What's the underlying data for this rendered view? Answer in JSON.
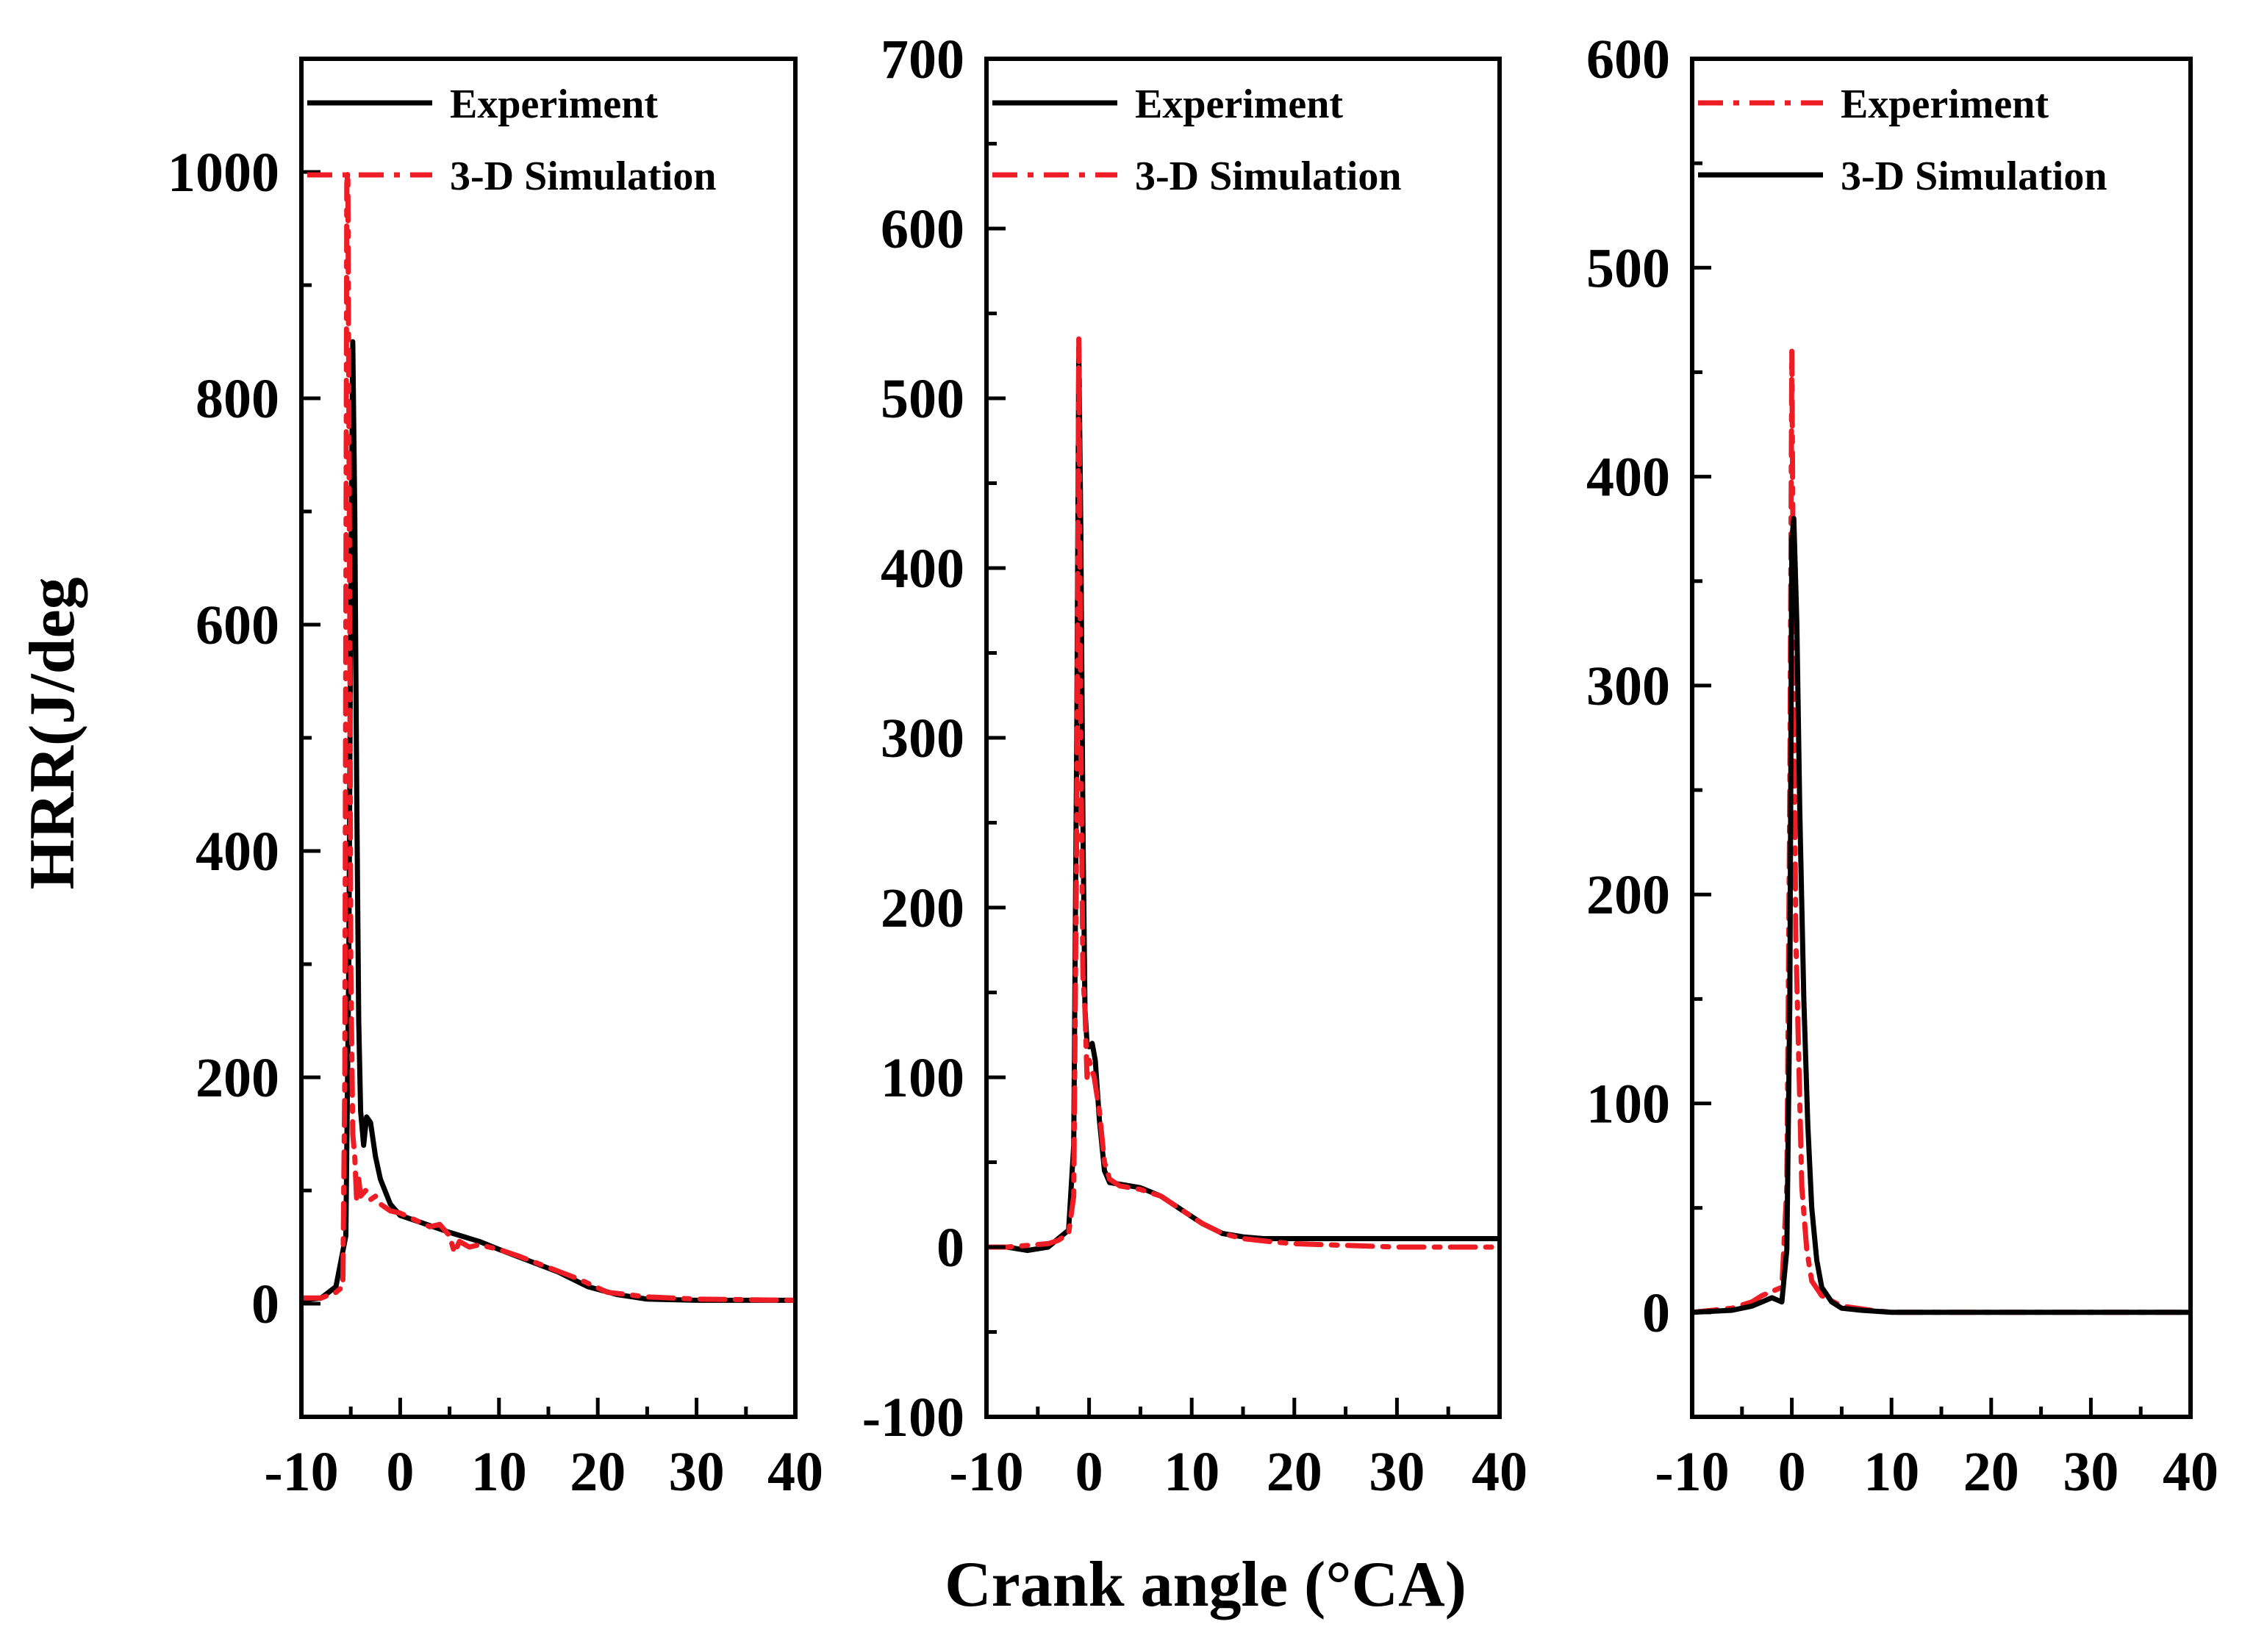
{
  "figure": {
    "ylabel": "HRR(J/deg",
    "xlabel": "Crank angle (°CA)"
  },
  "colors": {
    "experiment_black": "#000000",
    "simulation_red": "#ee1c25"
  },
  "chart_data": [
    {
      "type": "line",
      "xlim": [
        -10,
        40
      ],
      "ylim": [
        -100,
        1100
      ],
      "xticks": [
        -10,
        0,
        10,
        20,
        30,
        40
      ],
      "xtick_labels": [
        "-10",
        "0",
        "10",
        "20",
        "30",
        "40"
      ],
      "yticks": [
        0,
        200,
        400,
        600,
        800,
        1000
      ],
      "ytick_labels": [
        "0",
        "200",
        "400",
        "600",
        "800",
        "1000"
      ],
      "legend": {
        "position": "top-right",
        "labels": [
          "Experiment",
          "3-D Simulation"
        ]
      },
      "series": [
        {
          "name": "Experiment",
          "color": "#000000",
          "style": "solid",
          "x": [
            -10,
            -8,
            -6.5,
            -5.5,
            -5.2,
            -5,
            -4.8,
            -4.6,
            -4.4,
            -4.2,
            -4,
            -3.7,
            -3.4,
            -3,
            -2.5,
            -2,
            -1,
            0,
            2,
            5,
            8,
            10,
            13,
            16,
            19,
            22,
            25,
            30,
            40
          ],
          "y": [
            3,
            5,
            15,
            60,
            300,
            620,
            850,
            700,
            450,
            250,
            170,
            140,
            165,
            160,
            130,
            110,
            88,
            78,
            72,
            63,
            55,
            48,
            38,
            28,
            15,
            8,
            4,
            3,
            3
          ]
        },
        {
          "name": "3-D Simulation",
          "color": "#ee1c25",
          "style": "dashdot",
          "x": [
            -10,
            -8,
            -6.5,
            -5.8,
            -5.6,
            -5.4,
            -5.3,
            -5.1,
            -5,
            -4.8,
            -4.6,
            -4.4,
            -4.2,
            -4,
            -3.5,
            -3,
            -2.5,
            -2,
            -1,
            0,
            2,
            3,
            4,
            5,
            5.5,
            6,
            7,
            8,
            10,
            12,
            15,
            18,
            21,
            25,
            30,
            40
          ],
          "y": [
            5,
            5,
            10,
            15,
            200,
            990,
            1000,
            600,
            300,
            150,
            130,
            90,
            110,
            95,
            100,
            92,
            95,
            88,
            82,
            80,
            72,
            68,
            70,
            60,
            45,
            55,
            50,
            52,
            48,
            42,
            32,
            22,
            10,
            6,
            4,
            3
          ]
        }
      ]
    },
    {
      "type": "line",
      "xlim": [
        -10,
        40
      ],
      "ylim": [
        -100,
        700
      ],
      "xticks": [
        -10,
        0,
        10,
        20,
        30,
        40
      ],
      "xtick_labels": [
        "-10",
        "0",
        "10",
        "20",
        "30",
        "40"
      ],
      "yticks": [
        -100,
        0,
        100,
        200,
        300,
        400,
        500,
        600,
        700
      ],
      "ytick_labels": [
        "-100",
        "0",
        "100",
        "200",
        "300",
        "400",
        "500",
        "600",
        "700"
      ],
      "legend": {
        "position": "top-right",
        "labels": [
          "Experiment",
          "3-D Simulation"
        ]
      },
      "series": [
        {
          "name": "Experiment",
          "color": "#000000",
          "style": "solid",
          "x": [
            -10,
            -8,
            -6,
            -4,
            -3,
            -2,
            -1.5,
            -1.2,
            -1,
            -0.8,
            -0.6,
            -0.4,
            -0.2,
            0,
            0.3,
            0.6,
            1,
            1.5,
            2,
            3,
            5,
            7,
            9,
            11,
            13,
            15,
            17,
            20,
            25,
            30,
            40
          ],
          "y": [
            0,
            0,
            -2,
            0,
            5,
            10,
            60,
            300,
            530,
            420,
            250,
            140,
            120,
            118,
            120,
            110,
            75,
            45,
            38,
            37,
            35,
            30,
            22,
            14,
            8,
            6,
            5,
            5,
            5,
            5,
            5
          ]
        },
        {
          "name": "3-D Simulation",
          "color": "#ee1c25",
          "style": "dashdot",
          "x": [
            -10,
            -8,
            -6,
            -4,
            -3,
            -2,
            -1.5,
            -1.2,
            -1,
            -0.8,
            -0.6,
            -0.4,
            -0.2,
            0,
            0.5,
            1,
            1.5,
            2,
            3,
            5,
            7,
            9,
            11,
            13,
            15,
            18,
            20,
            25,
            30,
            40
          ],
          "y": [
            0,
            0,
            1,
            2,
            4,
            8,
            30,
            250,
            535,
            300,
            160,
            140,
            100,
            110,
            100,
            80,
            50,
            40,
            36,
            34,
            30,
            22,
            14,
            8,
            5,
            3,
            2,
            1,
            0,
            0
          ]
        }
      ]
    },
    {
      "type": "line",
      "xlim": [
        -10,
        40
      ],
      "ylim": [
        -50,
        600
      ],
      "xticks": [
        -10,
        0,
        10,
        20,
        30,
        40
      ],
      "xtick_labels": [
        "-10",
        "0",
        "10",
        "20",
        "30",
        "40"
      ],
      "yticks": [
        0,
        100,
        200,
        300,
        400,
        500,
        600
      ],
      "ytick_labels": [
        "0",
        "100",
        "200",
        "300",
        "400",
        "500",
        "600"
      ],
      "legend": {
        "position": "top-right",
        "labels": [
          "Experiment",
          "3-D Simulation"
        ]
      },
      "series": [
        {
          "name": "Experiment",
          "color": "#ee1c25",
          "style": "dashdot",
          "x": [
            -10,
            -6,
            -4,
            -3,
            -2,
            -1,
            -0.5,
            -0.2,
            0,
            0.2,
            0.4,
            0.7,
            1,
            1.5,
            2,
            3,
            5,
            8,
            10,
            15,
            20,
            30,
            40
          ],
          "y": [
            0,
            2,
            5,
            8,
            10,
            12,
            60,
            250,
            460,
            300,
            180,
            120,
            60,
            30,
            15,
            8,
            3,
            1,
            0,
            0,
            0,
            0,
            0
          ]
        },
        {
          "name": "3-D Simulation",
          "color": "#000000",
          "style": "solid",
          "x": [
            -10,
            -6,
            -4,
            -3,
            -2,
            -1.5,
            -1,
            -0.5,
            -0.2,
            0,
            0.2,
            0.5,
            0.8,
            1.2,
            1.6,
            2,
            2.5,
            3,
            4,
            5,
            7,
            10,
            15,
            20,
            30,
            40
          ],
          "y": [
            0,
            1,
            3,
            5,
            7,
            6,
            5,
            30,
            150,
            370,
            380,
            330,
            240,
            150,
            90,
            50,
            25,
            12,
            5,
            2,
            1,
            0,
            0,
            0,
            0,
            0
          ]
        }
      ]
    }
  ]
}
